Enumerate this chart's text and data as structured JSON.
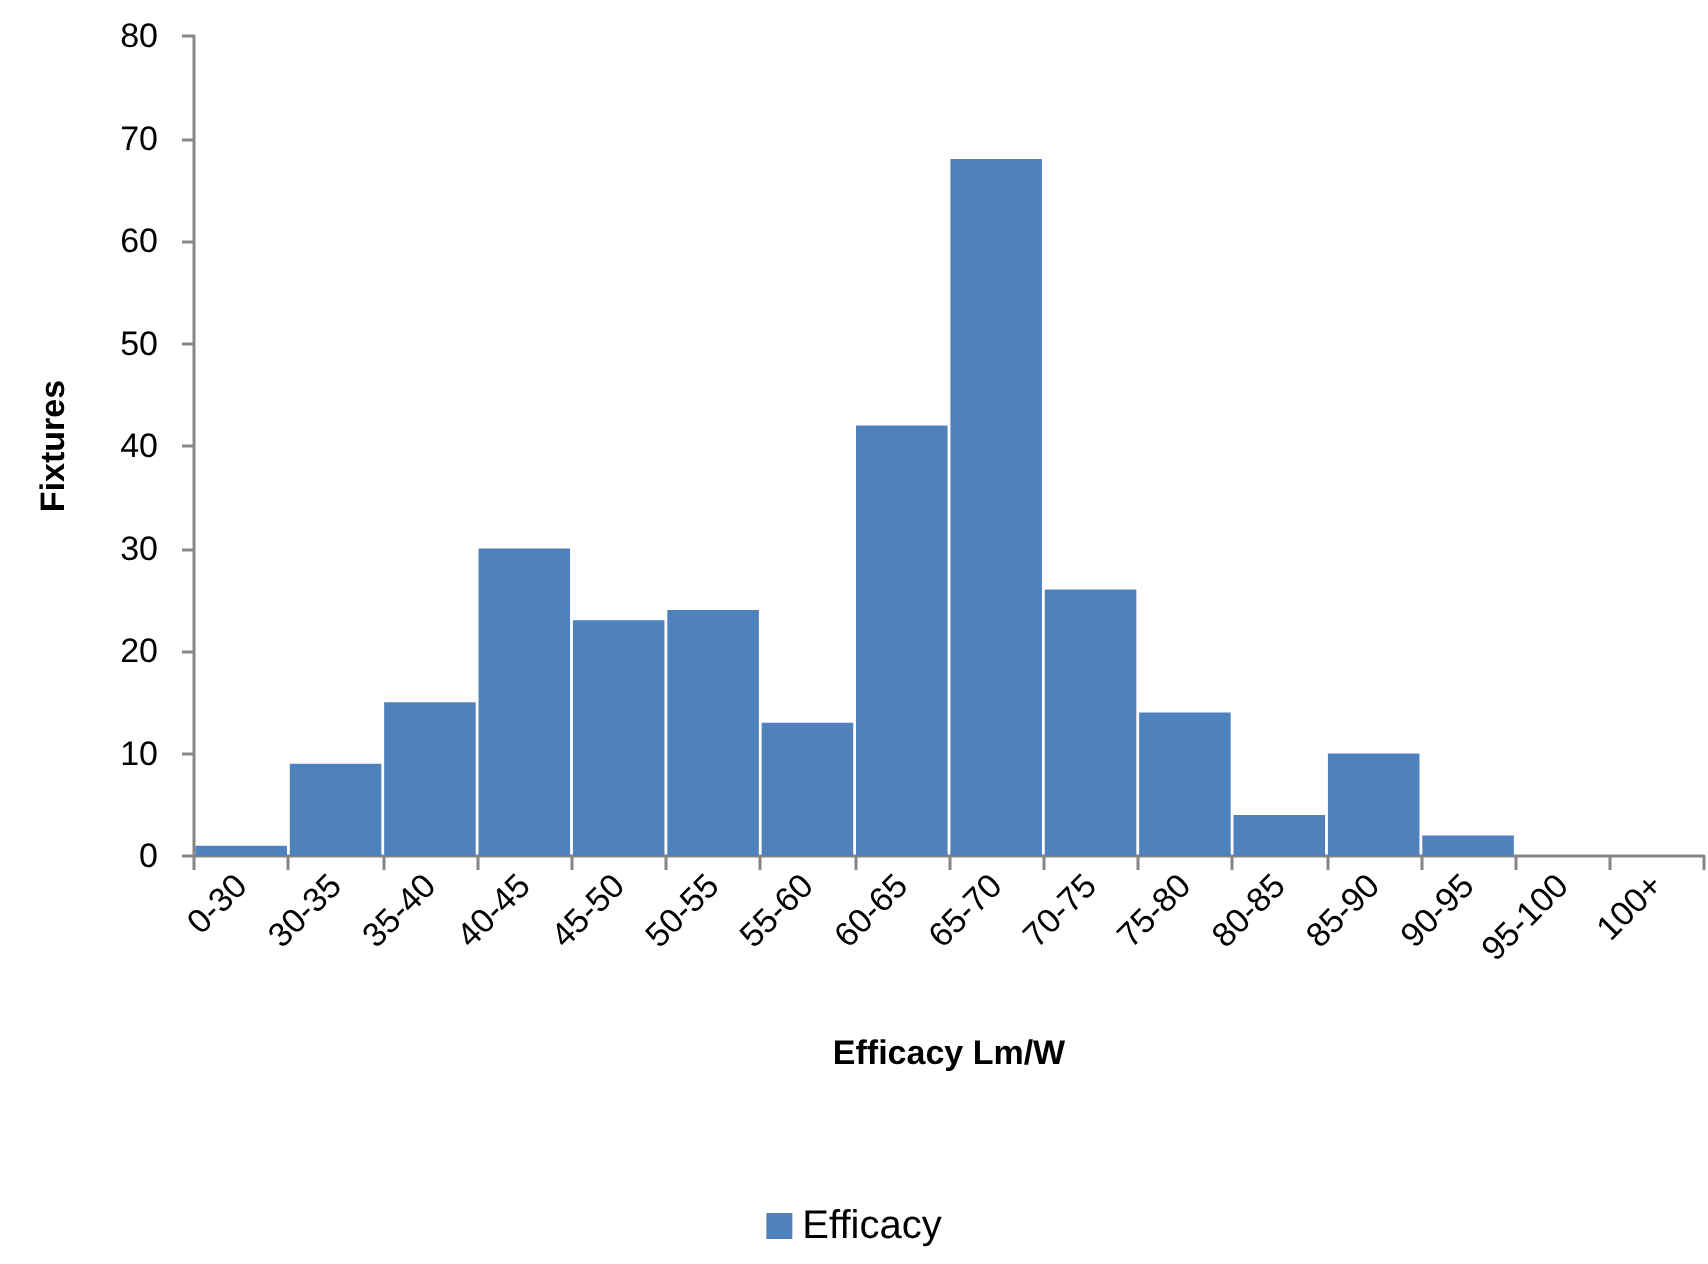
{
  "chart_data": {
    "type": "bar",
    "xlabel": "Efficacy Lm/W",
    "ylabel": "Fixtures",
    "categories": [
      "0-30",
      "30-35",
      "35-40",
      "40-45",
      "45-50",
      "50-55",
      "55-60",
      "60-65",
      "65-70",
      "70-75",
      "75-80",
      "80-85",
      "85-90",
      "90-95",
      "95-100",
      "100+"
    ],
    "series": [
      {
        "name": "Efficacy",
        "color": "#4f81bd",
        "values": [
          1,
          9,
          15,
          30,
          23,
          24,
          13,
          42,
          68,
          26,
          14,
          4,
          10,
          2,
          0,
          0
        ]
      }
    ],
    "ylim": [
      0,
      80
    ],
    "yticks": [
      0,
      10,
      20,
      30,
      40,
      50,
      60,
      70,
      80
    ],
    "grid": false,
    "legend": "bottom"
  }
}
